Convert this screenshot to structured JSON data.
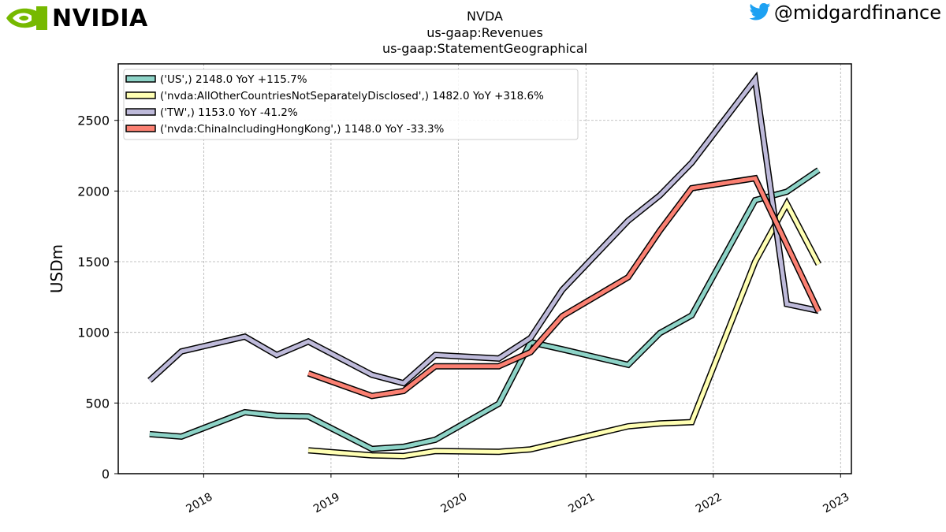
{
  "header": {
    "logo_text": "NVIDIA",
    "handle": "@midgardfinance",
    "title_lines": [
      "NVDA",
      "us-gaap:Revenues",
      "us-gaap:StatementGeographical"
    ]
  },
  "icons": {
    "logo": "nvidia-eye-icon",
    "social": "twitter-bird-icon"
  },
  "colors": {
    "logo_green": "#76b900",
    "twitter_blue": "#1da1f2"
  },
  "chart_data": {
    "type": "line",
    "title": "NVDA",
    "ylabel": "USDm",
    "xlabel": "",
    "ylim": [
      0,
      2900
    ],
    "y_ticks": [
      0,
      500,
      1000,
      1500,
      2000,
      2500
    ],
    "x_ticks": [
      "2018",
      "2019",
      "2020",
      "2021",
      "2022",
      "2023"
    ],
    "grid": true,
    "legend_position": "top-left",
    "series": [
      {
        "name": "('US',) 2148.0 YoY +115.7%",
        "color": "#8dd3c7",
        "x": [
          "2017-07-30",
          "2017-10-29",
          "2018-04-29",
          "2018-07-29",
          "2018-10-28",
          "2019-04-28",
          "2019-07-28",
          "2019-10-27",
          "2020-04-26",
          "2020-07-26",
          "2020-10-25",
          "2021-05-02",
          "2021-08-01",
          "2021-10-31",
          "2022-05-01",
          "2022-07-31",
          "2022-10-30"
        ],
        "values": [
          280,
          262,
          435,
          410,
          405,
          175,
          190,
          240,
          495,
          930,
          880,
          770,
          995,
          1120,
          1935,
          1995,
          2148
        ]
      },
      {
        "name": "('nvda:AllOtherCountriesNotSeparatelyDisclosed',) 1482.0 YoY +318.6%",
        "color": "#ffffb3",
        "x": [
          "2018-10-28",
          "2019-04-28",
          "2019-07-28",
          "2019-10-27",
          "2020-04-26",
          "2020-07-26",
          "2021-05-02",
          "2021-08-01",
          "2021-10-31",
          "2022-05-01",
          "2022-07-31",
          "2022-10-30"
        ],
        "values": [
          165,
          130,
          125,
          160,
          155,
          172,
          335,
          355,
          365,
          1500,
          1910,
          1482
        ]
      },
      {
        "name": "('TW',) 1153.0 YoY -41.2%",
        "color": "#bebada",
        "x": [
          "2017-07-30",
          "2017-10-29",
          "2018-04-29",
          "2018-07-29",
          "2018-10-28",
          "2019-04-28",
          "2019-07-28",
          "2019-10-27",
          "2020-04-26",
          "2020-07-26",
          "2020-10-25",
          "2021-05-02",
          "2021-08-01",
          "2021-10-31",
          "2022-05-01",
          "2022-07-31",
          "2022-10-30"
        ],
        "values": [
          660,
          865,
          970,
          840,
          935,
          700,
          640,
          840,
          815,
          960,
          1300,
          1790,
          1970,
          2200,
          2790,
          1200,
          1153
        ]
      },
      {
        "name": "('nvda:ChinaIncludingHongKong',) 1148.0 YoY -33.3%",
        "color": "#fb8072",
        "x": [
          "2018-10-28",
          "2019-04-28",
          "2019-07-28",
          "2019-10-27",
          "2020-04-26",
          "2020-07-26",
          "2020-10-25",
          "2021-05-02",
          "2021-08-01",
          "2021-10-31",
          "2022-05-01",
          "2022-10-30"
        ],
        "values": [
          710,
          550,
          585,
          760,
          760,
          860,
          1115,
          1390,
          1720,
          2020,
          2090,
          1148
        ]
      }
    ]
  }
}
